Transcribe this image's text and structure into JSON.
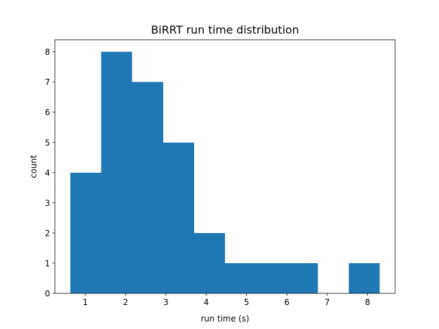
{
  "chart_data": {
    "type": "bar",
    "title": "BiRRT run time distribution",
    "xlabel": "run time (s)",
    "ylabel": "count",
    "bin_edges": [
      0.63,
      1.397,
      2.164,
      2.931,
      3.698,
      4.465,
      5.232,
      5.999,
      6.766,
      7.533,
      8.3
    ],
    "values": [
      4,
      8,
      7,
      5,
      2,
      1,
      1,
      1,
      0,
      1
    ],
    "xlim": [
      0.247,
      8.683
    ],
    "ylim": [
      0,
      8.4
    ],
    "xticks": [
      1,
      2,
      3,
      4,
      5,
      6,
      7,
      8
    ],
    "yticks": [
      0,
      1,
      2,
      3,
      4,
      5,
      6,
      7,
      8
    ],
    "grid": false,
    "colors": {
      "bar": "#1f77b4",
      "axes": "#000000",
      "background": "#ffffff"
    }
  }
}
